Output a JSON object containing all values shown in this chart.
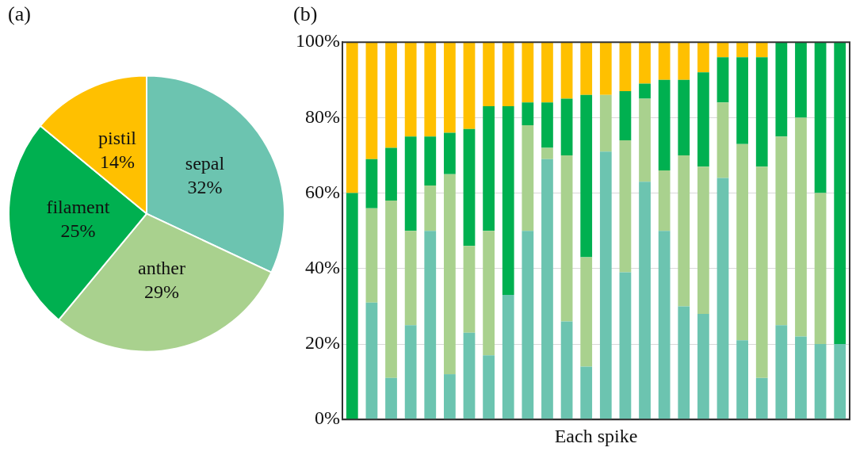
{
  "chart_data": [
    {
      "type": "pie",
      "title": "(a)",
      "categories": [
        "sepal",
        "anther",
        "filament",
        "pistil"
      ],
      "values": [
        32,
        29,
        25,
        14
      ],
      "colors": [
        "#6cc4b0",
        "#a9d18e",
        "#00b050",
        "#ffc000"
      ],
      "value_labels": [
        "32%",
        "29%",
        "25%",
        "14%"
      ],
      "legend": false
    },
    {
      "type": "bar",
      "title": "(b)",
      "xlabel": "Each spike",
      "stacked": true,
      "grid": "y",
      "legend": false,
      "categories": [
        null,
        null,
        null,
        null,
        null,
        null,
        null,
        null,
        null,
        null,
        null,
        null,
        null,
        null,
        null,
        null,
        null,
        null,
        null,
        null,
        null,
        null,
        null,
        null,
        null,
        null
      ],
      "ylim": [
        0,
        100
      ],
      "yticks": [
        {
          "value": 0,
          "label": "0%"
        },
        {
          "value": 20,
          "label": "20%"
        },
        {
          "value": 40,
          "label": "40%"
        },
        {
          "value": 60,
          "label": "60%"
        },
        {
          "value": 80,
          "label": "80%"
        },
        {
          "value": 100,
          "label": "100%"
        }
      ],
      "series": [
        {
          "color": "#6cc4b0",
          "values": [
            0,
            31,
            11,
            25,
            50,
            12,
            23,
            17,
            33,
            50,
            69,
            26,
            14,
            71,
            39,
            63,
            50,
            30,
            28,
            64,
            21,
            11,
            25,
            22,
            20,
            20
          ]
        },
        {
          "color": "#a9d18e",
          "values": [
            0,
            25,
            47,
            25,
            12,
            53,
            23,
            33,
            0,
            28,
            3,
            44,
            29,
            15,
            35,
            22,
            16,
            40,
            39,
            20,
            52,
            56,
            50,
            58,
            40,
            0
          ]
        },
        {
          "color": "#00b050",
          "values": [
            60,
            13,
            14,
            25,
            13,
            11,
            31,
            33,
            50,
            6,
            12,
            15,
            43,
            0,
            13,
            4,
            24,
            20,
            25,
            12,
            23,
            29,
            25,
            20,
            40,
            80
          ]
        },
        {
          "color": "#ffc000",
          "values": [
            40,
            31,
            28,
            25,
            25,
            24,
            23,
            17,
            17,
            16,
            16,
            15,
            14,
            14,
            13,
            11,
            10,
            10,
            8,
            4,
            4,
            4,
            0,
            0,
            0,
            0
          ]
        }
      ]
    }
  ]
}
